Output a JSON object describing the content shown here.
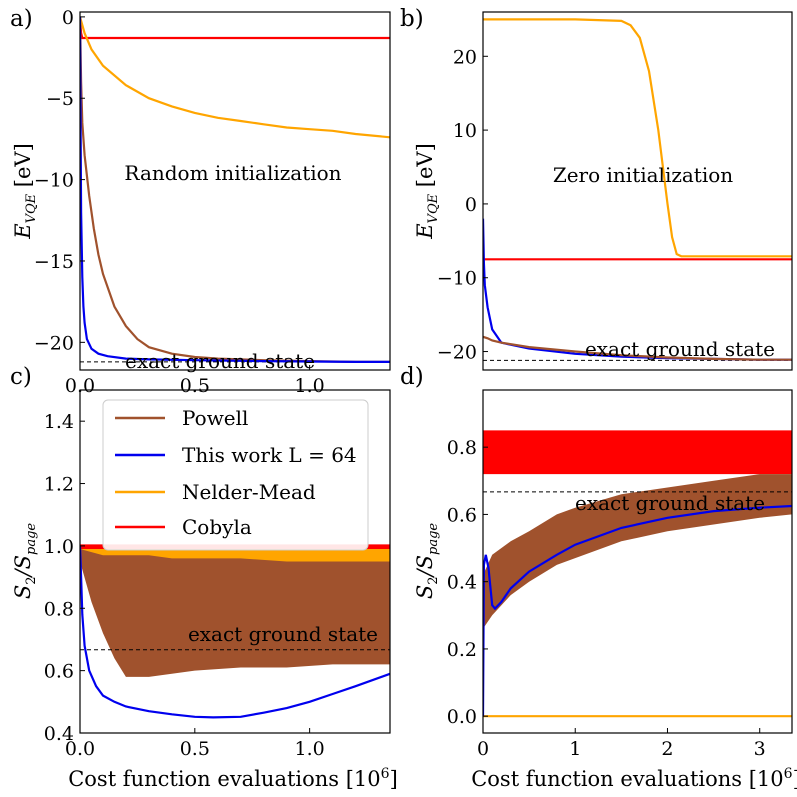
{
  "figure_labels": {
    "xlabel_prefix": "Cost function evaluations [10",
    "xlabel_exp": "6",
    "xlabel_suffix": "]"
  },
  "legend": {
    "entries": [
      {
        "label": "Powell"
      },
      {
        "label": "This work L = 64"
      },
      {
        "label": "Nelder-Mead"
      },
      {
        "label": "Cobyla"
      }
    ]
  },
  "colors": {
    "powell": "#a0522d",
    "this_work": "#0000ee",
    "nelder_mead": "#ffa500",
    "cobyla": "#ff0000",
    "reference": "#000000"
  },
  "chart_data": [
    {
      "panel": "a)",
      "type": "line",
      "title": "",
      "annotation": "Random initialization",
      "reference_label": "exact ground state",
      "ylabel": "E_VQE [eV]",
      "ylabel_main": "E",
      "ylabel_sub": "VQE",
      "ylabel_unit": "[eV]",
      "xlim": [
        0,
        1.35
      ],
      "ylim": [
        -21.7,
        0.3
      ],
      "xticks": [
        0.0,
        0.5,
        1.0
      ],
      "xtick_labels": [
        "0.0",
        "0.5",
        "1.0"
      ],
      "yticks": [
        0,
        -5,
        -10,
        -15,
        -20
      ],
      "ytick_labels": [
        "0",
        "−5",
        "−10",
        "−15",
        "−20"
      ],
      "reference": -21.2,
      "series": [
        {
          "name": "Cobyla",
          "x": [
            0,
            0.005,
            0.01,
            0.02,
            1.35
          ],
          "y": [
            -0.1,
            -1.0,
            -1.3,
            -1.3,
            -1.3
          ]
        },
        {
          "name": "Nelder-Mead",
          "x": [
            0,
            0.02,
            0.05,
            0.1,
            0.2,
            0.3,
            0.4,
            0.5,
            0.6,
            0.7,
            0.8,
            0.9,
            1.0,
            1.1,
            1.2,
            1.35
          ],
          "y": [
            0,
            -1.0,
            -2.0,
            -3.0,
            -4.2,
            -5.0,
            -5.5,
            -5.9,
            -6.2,
            -6.4,
            -6.6,
            -6.8,
            -6.9,
            -7.0,
            -7.2,
            -7.4
          ]
        },
        {
          "name": "Powell",
          "x": [
            0,
            0.005,
            0.01,
            0.02,
            0.04,
            0.06,
            0.08,
            0.1,
            0.15,
            0.2,
            0.25,
            0.3,
            0.4,
            0.5,
            0.6,
            0.8,
            1.0,
            1.2,
            1.35
          ],
          "y": [
            0,
            -4.0,
            -6.5,
            -8.5,
            -11.0,
            -13.0,
            -14.6,
            -15.8,
            -17.8,
            -19.0,
            -19.8,
            -20.3,
            -20.7,
            -20.9,
            -21.0,
            -21.1,
            -21.15,
            -21.2,
            -21.2
          ]
        },
        {
          "name": "This work L = 64",
          "x": [
            0,
            0.002,
            0.005,
            0.01,
            0.015,
            0.02,
            0.03,
            0.05,
            0.08,
            0.12,
            0.2,
            0.3,
            0.5,
            0.8,
            1.0,
            1.2,
            1.35
          ],
          "y": [
            0,
            -6.0,
            -12.0,
            -16.0,
            -17.8,
            -18.8,
            -19.8,
            -20.4,
            -20.7,
            -20.85,
            -21.0,
            -21.05,
            -21.1,
            -21.15,
            -21.18,
            -21.2,
            -21.2
          ]
        }
      ]
    },
    {
      "panel": "b)",
      "type": "line",
      "title": "",
      "annotation": "Zero initialization",
      "reference_label": "exact ground state",
      "ylabel": "E_VQE [eV]",
      "ylabel_main": "E",
      "ylabel_sub": "VQE",
      "ylabel_unit": "[eV]",
      "xlim": [
        0,
        3.35
      ],
      "ylim": [
        -22.5,
        26.0
      ],
      "xticks": [],
      "xtick_labels": [],
      "yticks": [
        20,
        10,
        0,
        -10,
        -20
      ],
      "ytick_labels": [
        "20",
        "10",
        "0",
        "−10",
        "−20"
      ],
      "reference": -21.2,
      "series": [
        {
          "name": "Nelder-Mead",
          "x": [
            0,
            1.0,
            1.5,
            1.6,
            1.7,
            1.8,
            1.9,
            1.95,
            2.0,
            2.05,
            2.1,
            2.15,
            3.35
          ],
          "y": [
            25.0,
            25.0,
            24.8,
            24.2,
            22.5,
            18.0,
            10.0,
            5.0,
            0.0,
            -4.5,
            -6.8,
            -7.1,
            -7.1
          ]
        },
        {
          "name": "Cobyla",
          "x": [
            0,
            3.35
          ],
          "y": [
            -7.5,
            -7.5
          ]
        },
        {
          "name": "This work L = 64",
          "x": [
            0,
            0.01,
            0.02,
            0.05,
            0.1,
            0.2,
            0.5,
            1.0,
            1.5,
            2.0,
            2.5,
            3.0,
            3.35
          ],
          "y": [
            -2.0,
            -8.0,
            -11.0,
            -14.0,
            -17.0,
            -18.8,
            -19.6,
            -20.3,
            -20.7,
            -20.9,
            -21.0,
            -21.1,
            -21.1
          ]
        },
        {
          "name": "Powell",
          "x": [
            0,
            0.05,
            0.1,
            0.2,
            0.5,
            1.0,
            1.5,
            2.0,
            2.5,
            3.0,
            3.35
          ],
          "y": [
            -18.0,
            -18.2,
            -18.5,
            -18.8,
            -19.4,
            -20.0,
            -20.5,
            -20.8,
            -21.0,
            -21.1,
            -21.1
          ]
        }
      ]
    },
    {
      "panel": "c)",
      "type": "line",
      "title": "",
      "annotation": "",
      "reference_label": "exact ground state",
      "ylabel": "S2/Spage",
      "ylabel_main": "S",
      "ylabel_sub": "2",
      "ylabel_slash": "/S",
      "ylabel_sub2": "page",
      "xlim": [
        0,
        1.35
      ],
      "ylim": [
        0.4,
        1.5
      ],
      "xticks": [
        0.0,
        0.5,
        1.0
      ],
      "xtick_labels": [
        "0.0",
        "0.5",
        "1.0"
      ],
      "yticks": [
        0.4,
        0.6,
        0.8,
        1.0,
        1.2,
        1.4
      ],
      "ytick_labels": [
        "0.4",
        "0.6",
        "0.8",
        "1.0",
        "1.2",
        "1.4"
      ],
      "reference": 0.667,
      "bands": [
        {
          "name": "Nelder-Mead",
          "x": [
            0,
            0.1,
            0.3,
            0.5,
            0.8,
            1.0,
            1.35
          ],
          "upper": [
            0.99,
            0.99,
            0.99,
            0.99,
            0.99,
            0.99,
            0.99
          ],
          "lower": [
            0.97,
            0.96,
            0.95,
            0.94,
            0.93,
            0.93,
            0.93
          ]
        },
        {
          "name": "Powell",
          "x": [
            0,
            0.05,
            0.1,
            0.15,
            0.2,
            0.3,
            0.4,
            0.5,
            0.7,
            0.9,
            1.1,
            1.35
          ],
          "upper": [
            0.99,
            0.98,
            0.97,
            0.97,
            0.97,
            0.97,
            0.96,
            0.96,
            0.96,
            0.95,
            0.95,
            0.95
          ],
          "lower": [
            0.95,
            0.82,
            0.72,
            0.64,
            0.58,
            0.58,
            0.59,
            0.6,
            0.61,
            0.61,
            0.62,
            0.62
          ]
        },
        {
          "name": "Cobyla",
          "x": [
            0,
            1.35
          ],
          "upper": [
            1.005,
            1.005
          ],
          "lower": [
            0.99,
            0.99
          ]
        }
      ],
      "series": [
        {
          "name": "This work L = 64",
          "x": [
            0,
            0.005,
            0.01,
            0.02,
            0.04,
            0.07,
            0.1,
            0.15,
            0.2,
            0.3,
            0.4,
            0.5,
            0.58,
            0.7,
            0.8,
            0.9,
            1.0,
            1.1,
            1.2,
            1.35
          ],
          "y": [
            1.0,
            0.9,
            0.78,
            0.68,
            0.6,
            0.55,
            0.52,
            0.5,
            0.485,
            0.47,
            0.46,
            0.452,
            0.45,
            0.452,
            0.465,
            0.48,
            0.5,
            0.525,
            0.55,
            0.59
          ]
        }
      ]
    },
    {
      "panel": "d)",
      "type": "line",
      "title": "",
      "annotation": "",
      "reference_label": "exact ground state",
      "ylabel": "S2/Spage",
      "ylabel_main": "S",
      "ylabel_sub": "2",
      "ylabel_slash": "/S",
      "ylabel_sub2": "page",
      "xlim": [
        0,
        3.35
      ],
      "ylim": [
        -0.05,
        0.97
      ],
      "xticks": [
        0,
        1,
        2,
        3
      ],
      "xtick_labels": [
        "0",
        "1",
        "2",
        "3"
      ],
      "yticks": [
        0.0,
        0.2,
        0.4,
        0.6,
        0.8
      ],
      "ytick_labels": [
        "0.0",
        "0.2",
        "0.4",
        "0.6",
        "0.8"
      ],
      "reference": 0.667,
      "bands": [
        {
          "name": "Cobyla",
          "x": [
            0,
            3.35
          ],
          "upper": [
            0.85,
            0.85
          ],
          "lower": [
            0.72,
            0.72
          ]
        },
        {
          "name": "Powell",
          "x": [
            0,
            0.1,
            0.3,
            0.5,
            0.8,
            1.0,
            1.5,
            2.0,
            2.5,
            3.0,
            3.35
          ],
          "upper": [
            0.42,
            0.48,
            0.52,
            0.55,
            0.6,
            0.62,
            0.66,
            0.68,
            0.7,
            0.72,
            0.72
          ],
          "lower": [
            0.26,
            0.3,
            0.36,
            0.4,
            0.45,
            0.47,
            0.52,
            0.55,
            0.57,
            0.59,
            0.6
          ]
        }
      ],
      "series": [
        {
          "name": "Nelder-Mead",
          "x": [
            0,
            3.35
          ],
          "y": [
            0.0,
            0.0
          ]
        },
        {
          "name": "This work L = 64",
          "x": [
            0,
            0.01,
            0.03,
            0.06,
            0.1,
            0.13,
            0.2,
            0.3,
            0.5,
            0.8,
            1.0,
            1.5,
            2.0,
            2.5,
            3.0,
            3.35
          ],
          "y": [
            0.0,
            0.45,
            0.48,
            0.44,
            0.33,
            0.32,
            0.34,
            0.38,
            0.43,
            0.48,
            0.51,
            0.56,
            0.59,
            0.61,
            0.62,
            0.625
          ]
        }
      ]
    }
  ]
}
